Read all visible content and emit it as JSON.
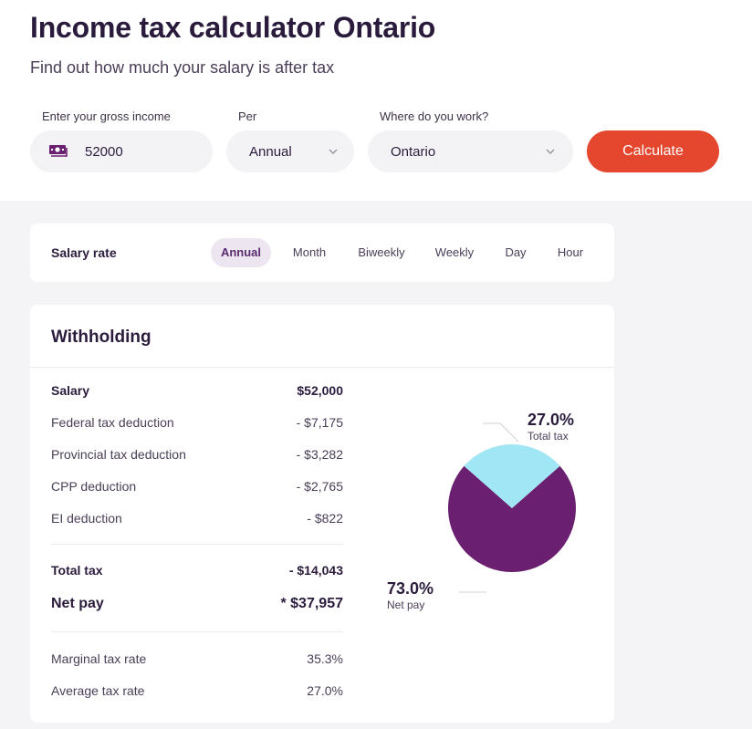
{
  "header": {
    "title": "Income tax calculator Ontario",
    "subtitle": "Find out how much your salary is after tax"
  },
  "form": {
    "income_label": "Enter your gross income",
    "income_value": "52000",
    "per_label": "Per",
    "per_value": "Annual",
    "where_label": "Where do you work?",
    "where_value": "Ontario",
    "calculate_label": "Calculate"
  },
  "salary_rate": {
    "label": "Salary rate",
    "tabs": [
      "Annual",
      "Month",
      "Biweekly",
      "Weekly",
      "Day",
      "Hour"
    ],
    "active": "Annual"
  },
  "withholding": {
    "title": "Withholding",
    "rows": [
      {
        "label": "Salary",
        "value": "$52,000"
      },
      {
        "label": "Federal tax deduction",
        "value": "- $7,175"
      },
      {
        "label": "Provincial tax deduction",
        "value": "- $3,282"
      },
      {
        "label": "CPP deduction",
        "value": "- $2,765"
      },
      {
        "label": "EI deduction",
        "value": "- $822"
      }
    ],
    "total_tax": {
      "label": "Total tax",
      "value": "- $14,043"
    },
    "net_pay": {
      "label": "Net pay",
      "value": "* $37,957"
    },
    "rates": [
      {
        "label": "Marginal tax rate",
        "value": "35.3%"
      },
      {
        "label": "Average tax rate",
        "value": "27.0%"
      }
    ]
  },
  "chart_data": {
    "type": "pie",
    "slices": [
      {
        "label": "Total tax",
        "value": 27.0,
        "display": "27.0%",
        "color": "#a0e6f5"
      },
      {
        "label": "Net pay",
        "value": 73.0,
        "display": "73.0%",
        "color": "#6a1f70"
      }
    ]
  },
  "icons": {
    "money": "money-icon",
    "chevron": "chevron-down-icon"
  },
  "colors": {
    "accent": "#e4472e",
    "active_tab_bg": "#ede6f1",
    "primary_purple": "#6a1f70"
  }
}
